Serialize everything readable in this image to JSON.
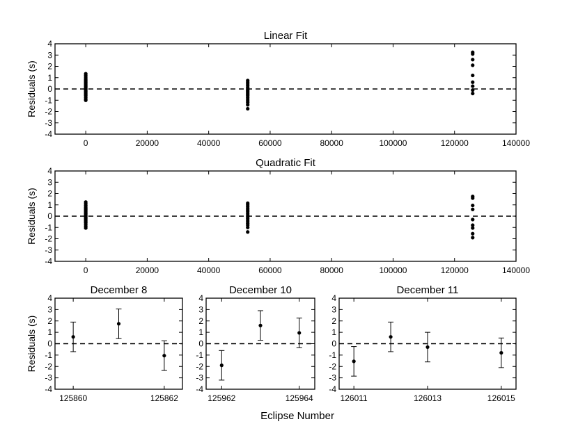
{
  "figure": {
    "xlabel": "Eclipse Number"
  },
  "chart_data": [
    {
      "type": "scatter",
      "title": "Linear Fit",
      "ylabel": "Residuals (s)",
      "xlim": [
        -10000,
        140000
      ],
      "ylim": [
        -4,
        4
      ],
      "xticks": [
        0,
        20000,
        40000,
        60000,
        80000,
        100000,
        120000,
        140000
      ],
      "yticks": [
        -4,
        -3,
        -2,
        -1,
        0,
        1,
        2,
        3,
        4
      ],
      "zero_line": "dashed",
      "points": [
        [
          0,
          1.35
        ],
        [
          0,
          1.2
        ],
        [
          0,
          1.05
        ],
        [
          0,
          0.9
        ],
        [
          0,
          0.8
        ],
        [
          0,
          0.7
        ],
        [
          0,
          0.6
        ],
        [
          0,
          0.5
        ],
        [
          0,
          0.4
        ],
        [
          0,
          0.3
        ],
        [
          0,
          0.2
        ],
        [
          0,
          0.1
        ],
        [
          0,
          0.0
        ],
        [
          0,
          -0.1
        ],
        [
          0,
          -0.2
        ],
        [
          0,
          -0.3
        ],
        [
          0,
          -0.4
        ],
        [
          0,
          -0.5
        ],
        [
          0,
          -0.6
        ],
        [
          0,
          -0.75
        ],
        [
          0,
          -0.9
        ],
        [
          0,
          -1.0
        ],
        [
          52700,
          0.75
        ],
        [
          52700,
          0.6
        ],
        [
          52700,
          0.45
        ],
        [
          52700,
          0.3
        ],
        [
          52700,
          0.15
        ],
        [
          52700,
          0.0
        ],
        [
          52700,
          -0.1
        ],
        [
          52700,
          -0.2
        ],
        [
          52700,
          -0.3
        ],
        [
          52700,
          -0.4
        ],
        [
          52700,
          -0.5
        ],
        [
          52700,
          -0.6
        ],
        [
          52700,
          -0.75
        ],
        [
          52700,
          -0.9
        ],
        [
          52700,
          -1.05
        ],
        [
          52700,
          -1.2
        ],
        [
          52700,
          -1.4
        ],
        [
          52700,
          -1.75
        ],
        [
          125900,
          3.25
        ],
        [
          125900,
          3.1
        ],
        [
          125900,
          2.6
        ],
        [
          125900,
          2.1
        ],
        [
          125900,
          1.2
        ],
        [
          125900,
          0.6
        ],
        [
          125900,
          0.25
        ],
        [
          125900,
          -0.1
        ],
        [
          125900,
          -0.4
        ]
      ]
    },
    {
      "type": "scatter",
      "title": "Quadratic Fit",
      "ylabel": "Residuals (s)",
      "xlim": [
        -10000,
        140000
      ],
      "ylim": [
        -4,
        4
      ],
      "xticks": [
        0,
        20000,
        40000,
        60000,
        80000,
        100000,
        120000,
        140000
      ],
      "yticks": [
        -4,
        -3,
        -2,
        -1,
        0,
        1,
        2,
        3,
        4
      ],
      "zero_line": "dashed",
      "points": [
        [
          0,
          1.25
        ],
        [
          0,
          1.1
        ],
        [
          0,
          0.95
        ],
        [
          0,
          0.8
        ],
        [
          0,
          0.7
        ],
        [
          0,
          0.6
        ],
        [
          0,
          0.5
        ],
        [
          0,
          0.4
        ],
        [
          0,
          0.3
        ],
        [
          0,
          0.2
        ],
        [
          0,
          0.1
        ],
        [
          0,
          0.0
        ],
        [
          0,
          -0.1
        ],
        [
          0,
          -0.2
        ],
        [
          0,
          -0.3
        ],
        [
          0,
          -0.4
        ],
        [
          0,
          -0.5
        ],
        [
          0,
          -0.6
        ],
        [
          0,
          -0.75
        ],
        [
          0,
          -0.9
        ],
        [
          0,
          -1.05
        ],
        [
          52700,
          1.15
        ],
        [
          52700,
          1.0
        ],
        [
          52700,
          0.85
        ],
        [
          52700,
          0.7
        ],
        [
          52700,
          0.55
        ],
        [
          52700,
          0.4
        ],
        [
          52700,
          0.25
        ],
        [
          52700,
          0.1
        ],
        [
          52700,
          -0.05
        ],
        [
          52700,
          -0.2
        ],
        [
          52700,
          -0.35
        ],
        [
          52700,
          -0.5
        ],
        [
          52700,
          -0.65
        ],
        [
          52700,
          -0.8
        ],
        [
          52700,
          -1.0
        ],
        [
          52700,
          -1.4
        ],
        [
          125900,
          1.75
        ],
        [
          125900,
          1.6
        ],
        [
          125900,
          0.95
        ],
        [
          125900,
          0.6
        ],
        [
          125900,
          -0.3
        ],
        [
          125900,
          -0.8
        ],
        [
          125900,
          -1.05
        ],
        [
          125900,
          -1.55
        ],
        [
          125900,
          -1.9
        ]
      ]
    },
    {
      "type": "scatter",
      "title": "December 8",
      "ylabel": "Residuals (s)",
      "xlim": [
        125859.6,
        125862.4
      ],
      "ylim": [
        -4,
        4
      ],
      "xticks": [
        125860,
        125862
      ],
      "yticks": [
        -4,
        -3,
        -2,
        -1,
        0,
        1,
        2,
        3,
        4
      ],
      "zero_line": "dashed",
      "points": [
        {
          "x": 125860,
          "y": 0.6,
          "err": 1.3
        },
        {
          "x": 125861,
          "y": 1.75,
          "err": 1.3
        },
        {
          "x": 125862,
          "y": -1.05,
          "err": 1.3
        }
      ]
    },
    {
      "type": "scatter",
      "title": "December 10",
      "ylabel": "",
      "xlim": [
        125961.6,
        125964.4
      ],
      "ylim": [
        -4,
        4
      ],
      "xticks": [
        125962,
        125964
      ],
      "yticks": [
        -4,
        -3,
        -2,
        -1,
        0,
        1,
        2,
        3,
        4
      ],
      "zero_line": "dashed",
      "points": [
        {
          "x": 125962,
          "y": -1.9,
          "err": 1.3
        },
        {
          "x": 125963,
          "y": 1.6,
          "err": 1.3
        },
        {
          "x": 125964,
          "y": 0.95,
          "err": 1.3
        }
      ]
    },
    {
      "type": "scatter",
      "title": "December 11",
      "ylabel": "",
      "xlim": [
        126010.6,
        126015.4
      ],
      "ylim": [
        -4,
        4
      ],
      "xticks": [
        126011,
        126013,
        126015
      ],
      "yticks": [
        -4,
        -3,
        -2,
        -1,
        0,
        1,
        2,
        3,
        4
      ],
      "zero_line": "dashed",
      "points": [
        {
          "x": 126011,
          "y": -1.55,
          "err": 1.3
        },
        {
          "x": 126012,
          "y": 0.6,
          "err": 1.3
        },
        {
          "x": 126013,
          "y": -0.3,
          "err": 1.3
        },
        {
          "x": 126015,
          "y": -0.8,
          "err": 1.3
        }
      ]
    }
  ]
}
